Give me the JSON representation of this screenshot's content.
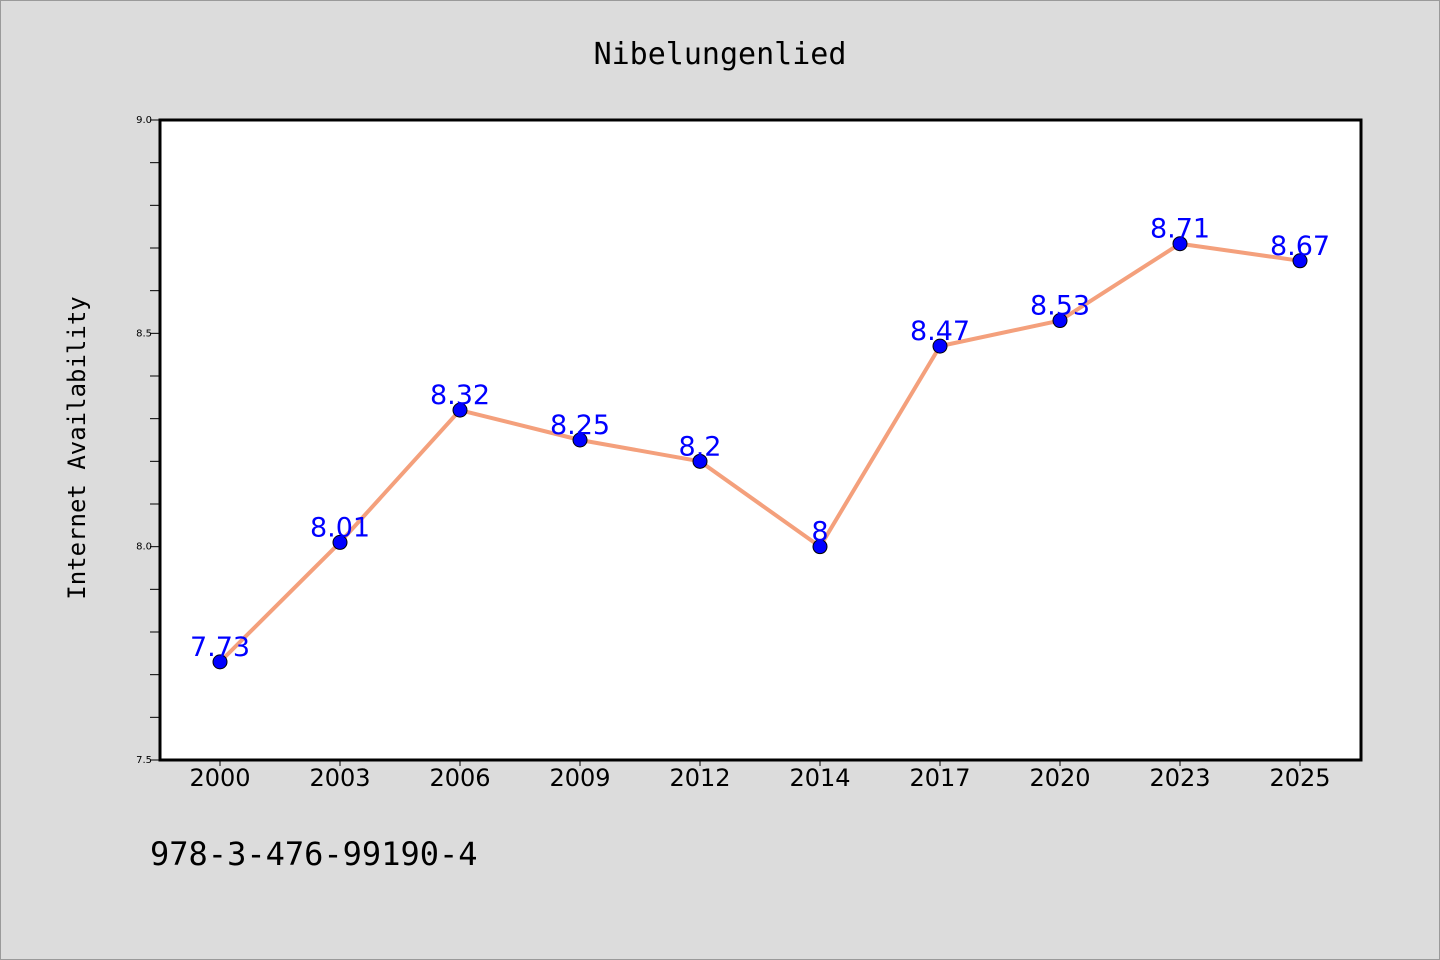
{
  "chart_data": {
    "type": "line",
    "title": "Nibelungenlied",
    "xlabel": "",
    "ylabel": "Internet Availability",
    "categories": [
      "2000",
      "2003",
      "2006",
      "2009",
      "2012",
      "2014",
      "2017",
      "2020",
      "2023",
      "2025"
    ],
    "series": [
      {
        "values": [
          7.73,
          8.01,
          8.32,
          8.25,
          8.2,
          8,
          8.47,
          8.53,
          8.71,
          8.67
        ],
        "labels": [
          "7.73",
          "8.01",
          "8.32",
          "8.25",
          "8.2",
          "8",
          "8.47",
          "8.53",
          "8.71",
          "8.67"
        ]
      }
    ],
    "ylim": [
      7.5,
      9.0
    ],
    "yticks": [
      "7.5",
      "8.0",
      "8.5",
      "9.0"
    ],
    "y_minor_step": 0.1,
    "grid": false,
    "legend": "none",
    "line_color": "#f4a07c",
    "marker_color": "#0000ff",
    "label_color": "#0000ff"
  },
  "footer": {
    "code": "978-3-476-99190-4"
  }
}
